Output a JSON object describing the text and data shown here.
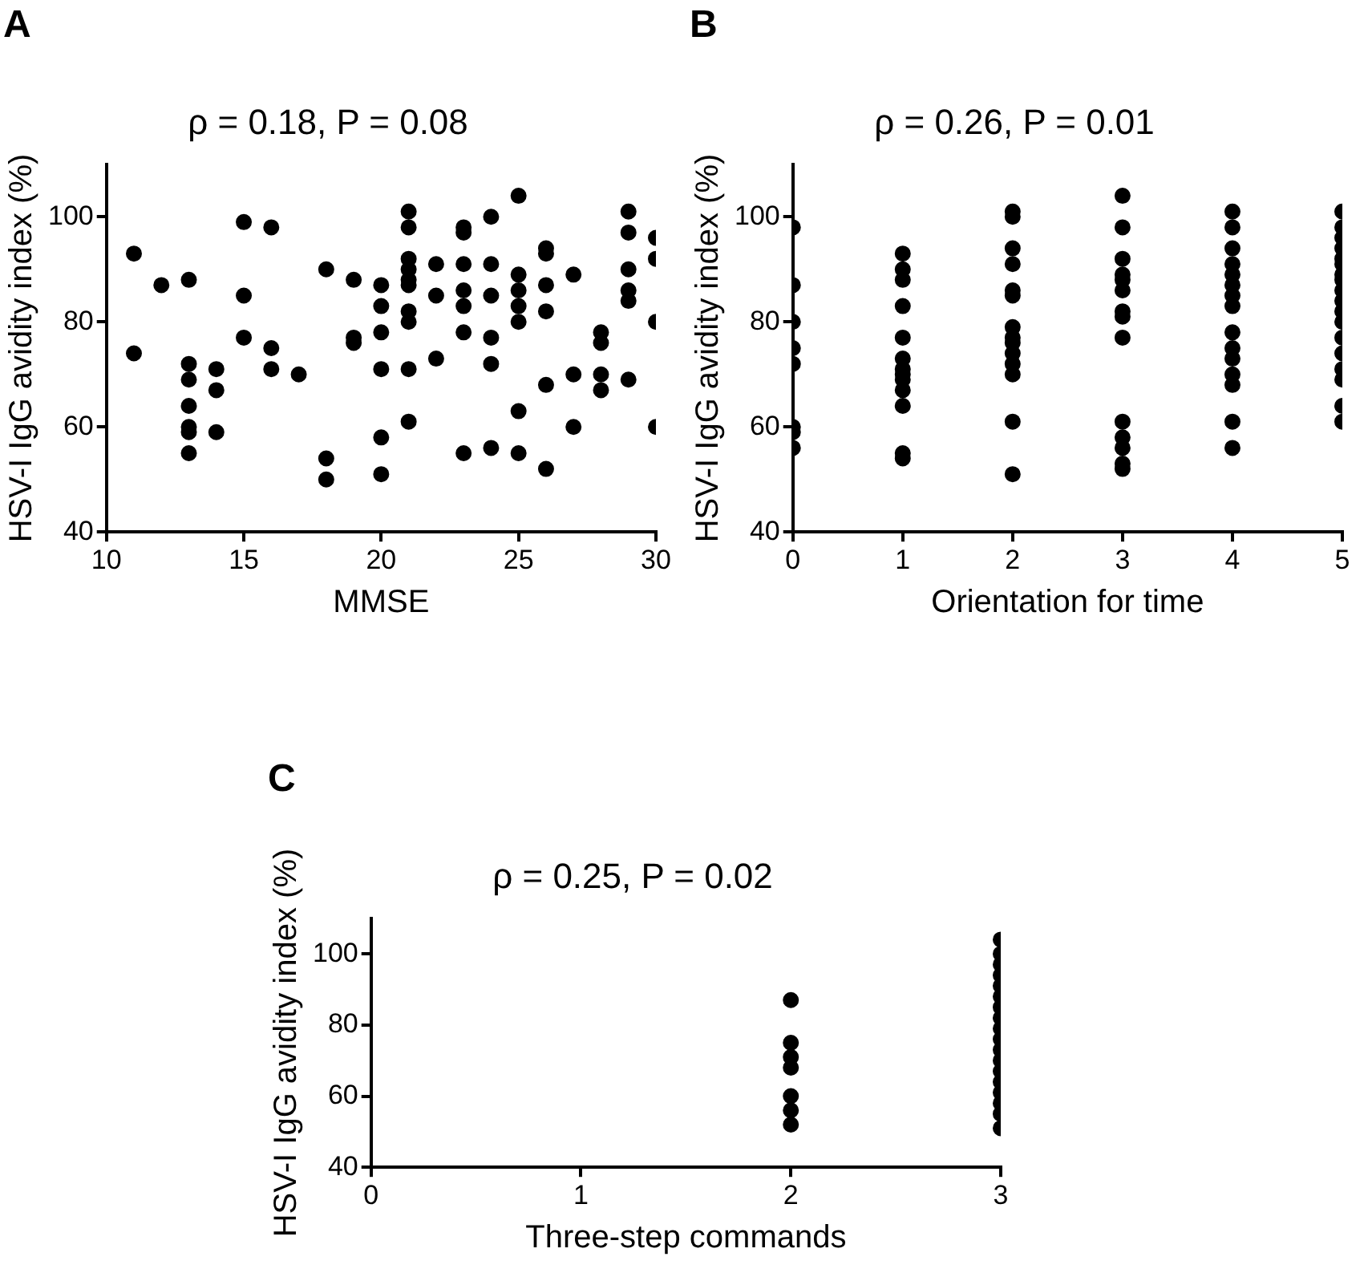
{
  "chart_data": [
    {
      "type": "scatter",
      "title": "ρ = 0.18, P = 0.08",
      "xlabel": "MMSE",
      "ylabel": "HSV-I IgG avidity index (%)",
      "annotations": [
        "A"
      ],
      "color": "#000000",
      "marker": "circle",
      "grid": false,
      "x": [
        11,
        11,
        12,
        13,
        13,
        13,
        13,
        13,
        13,
        13,
        14,
        14,
        14,
        15,
        15,
        15,
        16,
        16,
        16,
        17,
        18,
        18,
        18,
        19,
        19,
        19,
        20,
        20,
        20,
        20,
        20,
        20,
        21,
        21,
        21,
        21,
        21,
        21,
        21,
        21,
        21,
        21,
        22,
        22,
        22,
        23,
        23,
        23,
        23,
        23,
        23,
        23,
        24,
        24,
        24,
        24,
        24,
        24,
        25,
        25,
        25,
        25,
        25,
        25,
        25,
        26,
        26,
        26,
        26,
        26,
        26,
        27,
        27,
        27,
        28,
        28,
        28,
        28,
        29,
        29,
        29,
        29,
        29,
        29,
        30,
        30,
        30,
        30
      ],
      "values": [
        93,
        74,
        87,
        88,
        72,
        69,
        64,
        60,
        59,
        55,
        71,
        67,
        59,
        99,
        85,
        77,
        98,
        75,
        71,
        70,
        90,
        54,
        50,
        88,
        77,
        76,
        87,
        83,
        78,
        71,
        58,
        51,
        101,
        98,
        92,
        90,
        88,
        87,
        82,
        80,
        71,
        61,
        91,
        85,
        73,
        98,
        97,
        91,
        86,
        83,
        78,
        55,
        100,
        91,
        85,
        77,
        72,
        56,
        104,
        89,
        86,
        83,
        80,
        63,
        55,
        94,
        93,
        87,
        82,
        68,
        52,
        89,
        70,
        60,
        78,
        76,
        70,
        67,
        101,
        97,
        90,
        86,
        84,
        69,
        96,
        92,
        80,
        60
      ],
      "xlim": [
        10,
        30
      ],
      "xticks": [
        10,
        15,
        20,
        25,
        30
      ],
      "ylim": [
        40,
        110
      ],
      "yticks": [
        40,
        60,
        80,
        100
      ]
    },
    {
      "type": "scatter",
      "title": "ρ = 0.26, P = 0.01",
      "xlabel": "Orientation for time",
      "ylabel": "HSV-I IgG avidity index (%)",
      "annotations": [
        "B"
      ],
      "color": "#000000",
      "marker": "circle",
      "grid": false,
      "x": [
        0,
        0,
        0,
        0,
        0,
        0,
        0,
        0,
        1,
        1,
        1,
        1,
        1,
        1,
        1,
        1,
        1,
        1,
        1,
        1,
        1,
        2,
        2,
        2,
        2,
        2,
        2,
        2,
        2,
        2,
        2,
        2,
        2,
        2,
        2,
        3,
        3,
        3,
        3,
        3,
        3,
        3,
        3,
        3,
        3,
        3,
        3,
        3,
        3,
        4,
        4,
        4,
        4,
        4,
        4,
        4,
        4,
        4,
        4,
        4,
        4,
        4,
        4,
        4,
        5,
        5,
        5,
        5,
        5,
        5,
        5,
        5,
        5,
        5,
        5,
        5,
        5,
        5,
        5,
        5,
        5,
        5
      ],
      "values": [
        98,
        87,
        80,
        75,
        72,
        60,
        59,
        56,
        93,
        90,
        88,
        83,
        77,
        73,
        71,
        70,
        69,
        67,
        64,
        55,
        54,
        101,
        100,
        94,
        91,
        86,
        85,
        79,
        77,
        76,
        74,
        72,
        70,
        61,
        51,
        104,
        98,
        92,
        89,
        88,
        86,
        82,
        81,
        77,
        61,
        58,
        56,
        53,
        52,
        101,
        98,
        94,
        91,
        89,
        87,
        85,
        83,
        78,
        75,
        73,
        70,
        68,
        61,
        56,
        101,
        98,
        96,
        94,
        92,
        91,
        89,
        88,
        86,
        84,
        82,
        80,
        77,
        74,
        71,
        69,
        64,
        61
      ],
      "xlim": [
        0,
        5
      ],
      "xticks": [
        0,
        1,
        2,
        3,
        4,
        5
      ],
      "ylim": [
        40,
        110
      ],
      "yticks": [
        40,
        60,
        80,
        100
      ]
    },
    {
      "type": "scatter",
      "title": "ρ = 0.25, P = 0.02",
      "xlabel": "Three-step commands",
      "ylabel": "HSV-I IgG avidity index (%)",
      "annotations": [
        "C"
      ],
      "color": "#000000",
      "marker": "circle",
      "grid": false,
      "x": [
        2,
        2,
        2,
        2,
        2,
        2,
        2,
        3,
        3,
        3,
        3,
        3,
        3,
        3,
        3,
        3,
        3,
        3,
        3,
        3,
        3,
        3,
        3,
        3,
        3
      ],
      "values": [
        87,
        75,
        71,
        68,
        60,
        56,
        52,
        104,
        100,
        97,
        94,
        91,
        88,
        85,
        82,
        79,
        76,
        73,
        70,
        67,
        64,
        61,
        58,
        55,
        51
      ],
      "xlim": [
        0,
        3
      ],
      "xticks": [
        0,
        1,
        2,
        3
      ],
      "ylim": [
        40,
        110
      ],
      "yticks": [
        40,
        60,
        80,
        100
      ]
    }
  ]
}
